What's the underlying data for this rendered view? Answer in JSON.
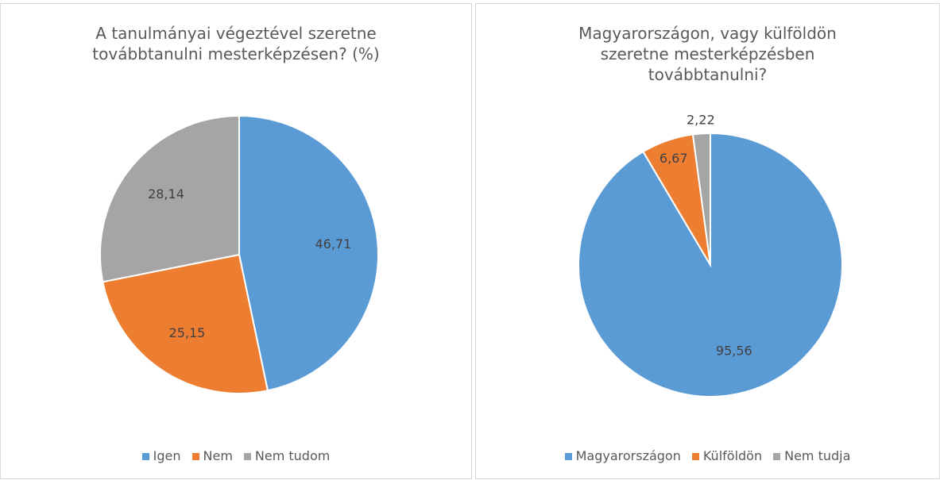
{
  "chart_data": [
    {
      "type": "pie",
      "title": "A tanulmányai végeztével szeretne továbbtanulni mesterképzésen? (%)",
      "categories": [
        "Igen",
        "Nem",
        "Nem tudom"
      ],
      "values": [
        46.71,
        25.15,
        28.14
      ],
      "value_labels": [
        "46,71",
        "25,15",
        "28,14"
      ],
      "colors": [
        "#5b9bd5",
        "#ed7d31",
        "#a5a5a5"
      ],
      "legend": "bottom"
    },
    {
      "type": "pie",
      "title": "Magyarországon, vagy külföldön szeretne mesterképzésben továbbtanulni?",
      "categories": [
        "Magyarországon",
        "Külföldön",
        "Nem tudja"
      ],
      "values": [
        95.56,
        6.67,
        2.22
      ],
      "value_labels": [
        "95,56",
        "6,67",
        "2,22"
      ],
      "colors": [
        "#5b9bd5",
        "#ed7d31",
        "#a5a5a5"
      ],
      "legend": "bottom"
    }
  ]
}
